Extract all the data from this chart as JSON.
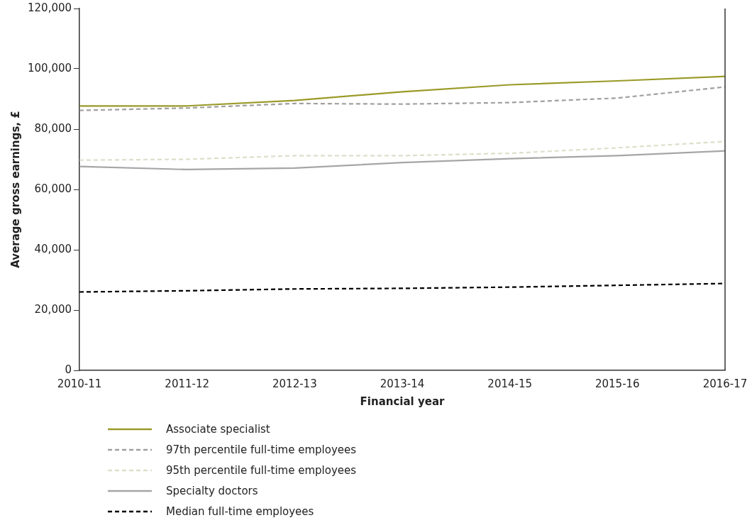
{
  "chart_data": {
    "type": "line",
    "xlabel": "Financial year",
    "ylabel": "Average gross earnings, £",
    "categories": [
      "2010-11",
      "2011-12",
      "2012-13",
      "2013-14",
      "2014-15",
      "2015-16",
      "2016-17"
    ],
    "ylim": [
      0,
      120000
    ],
    "yticks": [
      {
        "value": 0,
        "label": "0"
      },
      {
        "value": 20000,
        "label": "20,000"
      },
      {
        "value": 40000,
        "label": "40,000"
      },
      {
        "value": 60000,
        "label": "60,000"
      },
      {
        "value": 80000,
        "label": "80,000"
      },
      {
        "value": 100000,
        "label": "100,000"
      },
      {
        "value": 120000,
        "label": "120,000"
      }
    ],
    "grid": false,
    "legend": "bottom",
    "marker": "none",
    "series": [
      {
        "name": "Associate specialist",
        "color": "#9a9a28",
        "line_style": "solid",
        "values": [
          87700,
          87700,
          89500,
          92400,
          94700,
          96000,
          97500
        ]
      },
      {
        "name": "97th percentile full-time employees",
        "color": "#a0a0a0",
        "line_style": "dashed",
        "values": [
          86200,
          87000,
          88500,
          88300,
          88800,
          90300,
          94000
        ]
      },
      {
        "name": "95th percentile full-time employees",
        "color": "#dedecb",
        "line_style": "dashed",
        "values": [
          69700,
          70000,
          71200,
          71200,
          72000,
          73800,
          75900
        ]
      },
      {
        "name": "Specialty doctors",
        "color": "#a6a6a6",
        "line_style": "solid",
        "values": [
          67600,
          66600,
          67100,
          68900,
          70200,
          71200,
          72800
        ]
      },
      {
        "name": "Median full-time employees",
        "color": "#000000",
        "line_style": "dashed",
        "values": [
          26000,
          26400,
          27000,
          27200,
          27600,
          28200,
          28800
        ]
      }
    ]
  }
}
